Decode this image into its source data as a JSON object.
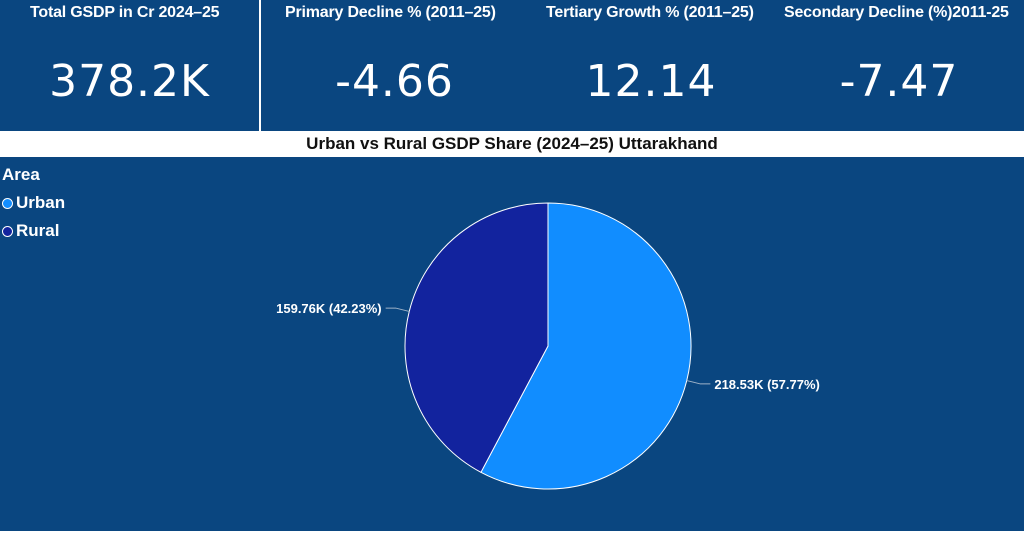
{
  "kpis": [
    {
      "title": "Total GSDP in Cr 2024–25",
      "value": "378.2K"
    },
    {
      "title": "Primary Decline % (2011–25)",
      "value": "-4.66"
    },
    {
      "title": "Tertiary Growth % (2011–25)",
      "value": "12.14"
    },
    {
      "title": "Secondary Decline (%)2011-25",
      "value": "-7.47"
    }
  ],
  "chart_data": {
    "type": "pie",
    "title": "Urban vs Rural GSDP Share (2024–25) Uttarakhand",
    "legend_title": "Area",
    "legend_position": "top-left",
    "slices": [
      {
        "name": "Urban",
        "value": 218.53,
        "percent": 57.77,
        "label": "218.53K (57.77%)",
        "color": "#118dff"
      },
      {
        "name": "Rural",
        "value": 159.76,
        "percent": 42.23,
        "label": "159.76K (42.23%)",
        "color": "#12239e"
      }
    ]
  },
  "colors": {
    "panel": "#0a4680",
    "text": "#ffffff"
  }
}
